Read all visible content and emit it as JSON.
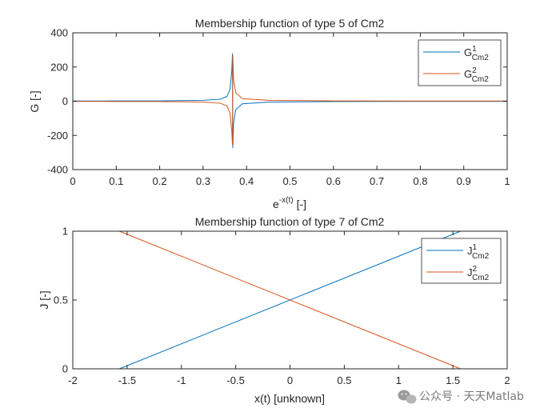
{
  "colors": {
    "series1": "#0072BD",
    "series2": "#D95319",
    "axis": "#262626",
    "background": "#ffffff"
  },
  "watermark": {
    "text": "公众号 · 天天Matlab",
    "icon": "wechat-icon"
  },
  "chart_data": [
    {
      "type": "line",
      "title": "Membership function of type 5 of Cm2",
      "xlabel_base": "e",
      "xlabel_sup": "-x(t)",
      "xlabel_unit": "[-]",
      "ylabel": "G [-]",
      "xlim": [
        0,
        1
      ],
      "ylim": [
        -400,
        400
      ],
      "xticks": [
        0,
        0.1,
        0.2,
        0.3,
        0.4,
        0.5,
        0.6,
        0.7,
        0.8,
        0.9,
        1
      ],
      "xtick_labels": [
        "0",
        "0.1",
        "0.2",
        "0.3",
        "0.4",
        "0.5",
        "0.6",
        "0.7",
        "0.8",
        "0.9",
        "1"
      ],
      "yticks": [
        -400,
        -200,
        0,
        200,
        400
      ],
      "ytick_labels": [
        "-400",
        "-200",
        "0",
        "200",
        "400"
      ],
      "legend_location": "top-right",
      "singularity_x": 0.3679,
      "series": [
        {
          "name_base": "G",
          "name_sup": "1",
          "name_sub": "Cm2",
          "color": "#0072BD",
          "x": [
            0,
            0.1,
            0.2,
            0.3,
            0.34,
            0.355,
            0.362,
            0.366,
            0.3676,
            0.3682,
            0.37,
            0.375,
            0.39,
            0.45,
            0.6,
            0.8,
            1
          ],
          "y": [
            1,
            1.5,
            2,
            5,
            12,
            28,
            70,
            180,
            280,
            -275,
            -130,
            -50,
            -15,
            -5,
            -2,
            -1,
            -1
          ]
        },
        {
          "name_base": "G",
          "name_sup": "2",
          "name_sub": "Cm2",
          "color": "#D95319",
          "x": [
            0,
            0.1,
            0.2,
            0.3,
            0.34,
            0.355,
            0.362,
            0.366,
            0.3676,
            0.3682,
            0.37,
            0.375,
            0.39,
            0.45,
            0.6,
            0.8,
            1
          ],
          "y": [
            -1,
            -1.5,
            -2,
            -5,
            -12,
            -28,
            -70,
            -180,
            -260,
            270,
            130,
            50,
            15,
            5,
            2,
            1,
            1
          ]
        }
      ]
    },
    {
      "type": "line",
      "title": "Membership function of type 7 of Cm2",
      "xlabel": "x(t) [unknown]",
      "ylabel": "J [-]",
      "xlim": [
        -2,
        2
      ],
      "ylim": [
        0,
        1
      ],
      "xticks": [
        -2,
        -1.5,
        -1,
        -0.5,
        0,
        0.5,
        1,
        1.5,
        2
      ],
      "xtick_labels": [
        "-2",
        "-1.5",
        "-1",
        "-0.5",
        "0",
        "0.5",
        "1",
        "1.5",
        "2"
      ],
      "yticks": [
        0,
        0.5,
        1
      ],
      "ytick_labels": [
        "0",
        "0.5",
        "1"
      ],
      "legend_location": "top-right",
      "series": [
        {
          "name_base": "J",
          "name_sup": "1",
          "name_sub": "Cm2",
          "color": "#0072BD",
          "x": [
            -1.5708,
            1.5708
          ],
          "y": [
            0,
            1
          ]
        },
        {
          "name_base": "J",
          "name_sup": "2",
          "name_sub": "Cm2",
          "color": "#D95319",
          "x": [
            -1.5708,
            1.5708
          ],
          "y": [
            1,
            0
          ]
        }
      ]
    }
  ]
}
